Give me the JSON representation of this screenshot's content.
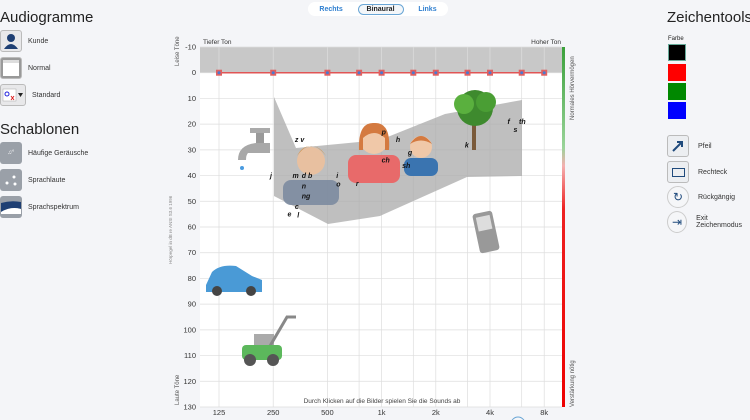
{
  "left": {
    "audiogramme_title": "Audiogramme",
    "items": [
      {
        "label": "Kunde",
        "icon": "user-icon"
      },
      {
        "label": "Normal",
        "icon": "blank-audiogram-icon"
      },
      {
        "label": "Standard",
        "icon": "symbol-set-icon"
      }
    ],
    "schablonen_title": "Schablonen",
    "templates": [
      {
        "label": "Häufige Geräusche",
        "icon": "music-notes-icon"
      },
      {
        "label": "Sprachlaute",
        "icon": "speech-sounds-icon"
      },
      {
        "label": "Sprachspektrum",
        "icon": "speech-spectrum-icon"
      }
    ]
  },
  "tabs": [
    {
      "label": "Rechts"
    },
    {
      "label": "Binaural",
      "active": true
    },
    {
      "label": "Links"
    }
  ],
  "right": {
    "title": "Zeichentools",
    "color_label": "Farbe",
    "colors": [
      "#000000",
      "#ff0000",
      "#008000",
      "#0000ff"
    ],
    "tools": [
      {
        "label": "Pfeil",
        "icon": "arrow-icon"
      },
      {
        "label": "Rechteck",
        "icon": "rectangle-icon"
      },
      {
        "label": "Rückgängig",
        "icon": "undo-icon"
      },
      {
        "label": "Exit Zeichenmodus",
        "icon": "exit-icon"
      }
    ]
  },
  "chart_data": {
    "type": "line",
    "title": "",
    "xlabel_left": "Tiefer Ton",
    "xlabel_right": "Hoher Ton",
    "ylabel": "Hörpegel in dB re ANSI S3.6 1996",
    "ylabel_top": "Leise Töne",
    "ylabel_bottom": "Laute Töne",
    "right_top": "Normales Hörvermögen",
    "right_bottom": "Verstärkung nötig",
    "caption": "Durch Klicken auf die Bilder spielen Sie die Sounds ab",
    "x_ticks": [
      "125",
      "250",
      "500",
      "1k",
      "2k",
      "4k",
      "8k"
    ],
    "x_scale": "log",
    "ylim": [
      -10,
      130
    ],
    "y_ticks": [
      -10,
      0,
      10,
      20,
      30,
      40,
      50,
      60,
      70,
      80,
      90,
      100,
      110,
      120,
      130
    ],
    "series": [
      {
        "x": [
          125,
          250,
          500,
          750,
          1000,
          1500,
          2000,
          3000,
          4000,
          6000,
          8000
        ],
        "y": [
          0,
          0,
          0,
          0,
          0,
          0,
          0,
          0,
          0,
          0,
          0
        ],
        "color": "#e05555"
      }
    ],
    "phonemes": [
      {
        "t": "z v",
        "f": 330,
        "db": 27
      },
      {
        "t": "j",
        "f": 240,
        "db": 41
      },
      {
        "t": "m",
        "f": 320,
        "db": 41
      },
      {
        "t": "d",
        "f": 360,
        "db": 41
      },
      {
        "t": "b",
        "f": 390,
        "db": 41
      },
      {
        "t": "n",
        "f": 360,
        "db": 45
      },
      {
        "t": "ng",
        "f": 360,
        "db": 49
      },
      {
        "t": "c",
        "f": 330,
        "db": 53
      },
      {
        "t": "e",
        "f": 300,
        "db": 56
      },
      {
        "t": "l",
        "f": 340,
        "db": 56
      },
      {
        "t": "i",
        "f": 560,
        "db": 41
      },
      {
        "t": "o",
        "f": 560,
        "db": 44
      },
      {
        "t": "r",
        "f": 720,
        "db": 44
      },
      {
        "t": "p",
        "f": 1000,
        "db": 24
      },
      {
        "t": "h",
        "f": 1200,
        "db": 27
      },
      {
        "t": "g",
        "f": 1400,
        "db": 32
      },
      {
        "t": "ch",
        "f": 1000,
        "db": 35
      },
      {
        "t": "sh",
        "f": 1300,
        "db": 37
      },
      {
        "t": "k",
        "f": 2900,
        "db": 29
      },
      {
        "t": "f",
        "f": 5000,
        "db": 20
      },
      {
        "t": "th",
        "f": 5800,
        "db": 20
      },
      {
        "t": "s",
        "f": 5400,
        "db": 23
      }
    ],
    "sounds": [
      {
        "name": "faucet",
        "icon": "faucet-icon"
      },
      {
        "name": "car",
        "icon": "car-icon"
      },
      {
        "name": "lawnmower",
        "icon": "lawnmower-icon"
      },
      {
        "name": "tree",
        "icon": "tree-icon"
      },
      {
        "name": "phone",
        "icon": "phone-icon"
      },
      {
        "name": "man",
        "icon": "man-icon"
      },
      {
        "name": "woman",
        "icon": "woman-icon"
      },
      {
        "name": "child",
        "icon": "child-icon"
      }
    ]
  }
}
